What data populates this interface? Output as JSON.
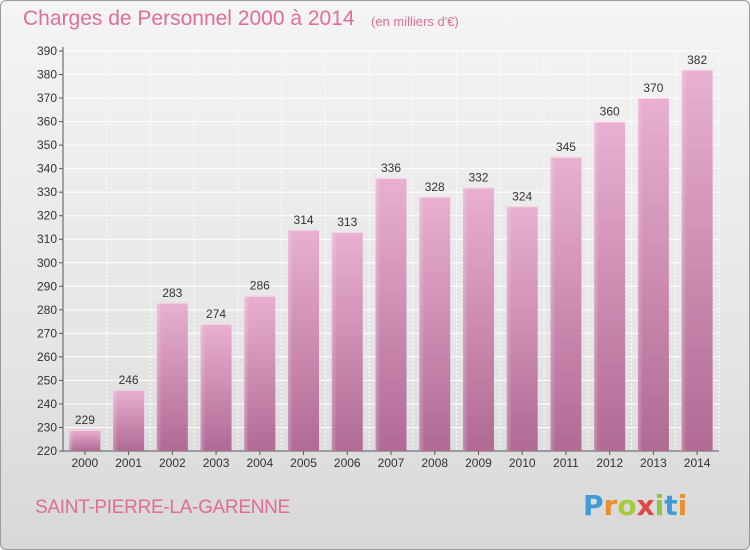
{
  "header": {
    "title": "Charges de Personnel 2000 à 2014",
    "unit": "(en milliers d'€)"
  },
  "footer": {
    "city": "SAINT-PIERRE-LA-GARENNE",
    "logo": "Proxiti"
  },
  "colors": {
    "bar_light": "#e6a8cc",
    "bar_dark": "#b06a94",
    "title": "#e06d98",
    "grid": "#ffffff",
    "logo_letters": [
      "#3f9bd8",
      "#e98f2c",
      "#a8c93a",
      "#e04646",
      "#8bc63e",
      "#3f9bd8",
      "#e98f2c"
    ]
  },
  "chart_data": {
    "type": "bar",
    "title": "Charges de Personnel 2000 à 2014",
    "ylabel": "",
    "xlabel": "",
    "categories": [
      "2000",
      "2001",
      "2002",
      "2003",
      "2004",
      "2005",
      "2006",
      "2007",
      "2008",
      "2009",
      "2010",
      "2011",
      "2012",
      "2013",
      "2014"
    ],
    "values": [
      229,
      246,
      283,
      274,
      286,
      314,
      313,
      336,
      328,
      332,
      324,
      345,
      360,
      370,
      382
    ],
    "ylim": [
      220,
      390
    ],
    "yticks": [
      220,
      230,
      240,
      250,
      260,
      270,
      280,
      290,
      300,
      310,
      320,
      330,
      340,
      350,
      360,
      370,
      380,
      390
    ],
    "grid": true,
    "data_labels": true
  }
}
